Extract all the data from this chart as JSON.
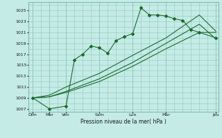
{
  "xlabel": "Pression niveau de la mer( hPa )",
  "background_color": "#c5ebe6",
  "grid_color": "#8fc8c0",
  "line_color": "#1a6b2a",
  "ylim": [
    1006.5,
    1026.5
  ],
  "ytick_values": [
    1007,
    1009,
    1011,
    1013,
    1015,
    1017,
    1019,
    1021,
    1023,
    1025
  ],
  "n_xcells": 22,
  "day_positions": [
    0,
    2,
    4,
    8,
    12,
    16,
    22
  ],
  "day_labels": [
    "Dim",
    "Mer",
    "Ven",
    "Sam",
    "Lun",
    "Mar",
    "Jeu"
  ],
  "series": [
    {
      "x": [
        0,
        2,
        4,
        5,
        6,
        7,
        8,
        9,
        10,
        11,
        12,
        13,
        14,
        15,
        16,
        17,
        18,
        19,
        20,
        22
      ],
      "y": [
        1009,
        1007,
        1007.5,
        1016,
        1017,
        1018.5,
        1018.2,
        1017.2,
        1019.5,
        1020.2,
        1020.8,
        1025.5,
        1024.2,
        1024.2,
        1024,
        1023.5,
        1023.2,
        1021.5,
        1021,
        1020
      ],
      "marker": true
    },
    {
      "x": [
        0,
        2,
        4,
        8,
        12,
        16,
        20,
        22
      ],
      "y": [
        1009,
        1009.2,
        1010,
        1012,
        1014.8,
        1018,
        1021,
        1021
      ],
      "marker": false
    },
    {
      "x": [
        0,
        2,
        4,
        8,
        12,
        16,
        20,
        22
      ],
      "y": [
        1009,
        1009.2,
        1010.2,
        1012.5,
        1015.5,
        1019,
        1022.5,
        1019.8
      ],
      "marker": false
    },
    {
      "x": [
        0,
        2,
        4,
        8,
        12,
        16,
        20,
        22
      ],
      "y": [
        1009,
        1009.5,
        1011,
        1013.5,
        1016.8,
        1020,
        1024.2,
        1021.2
      ],
      "marker": false
    }
  ]
}
